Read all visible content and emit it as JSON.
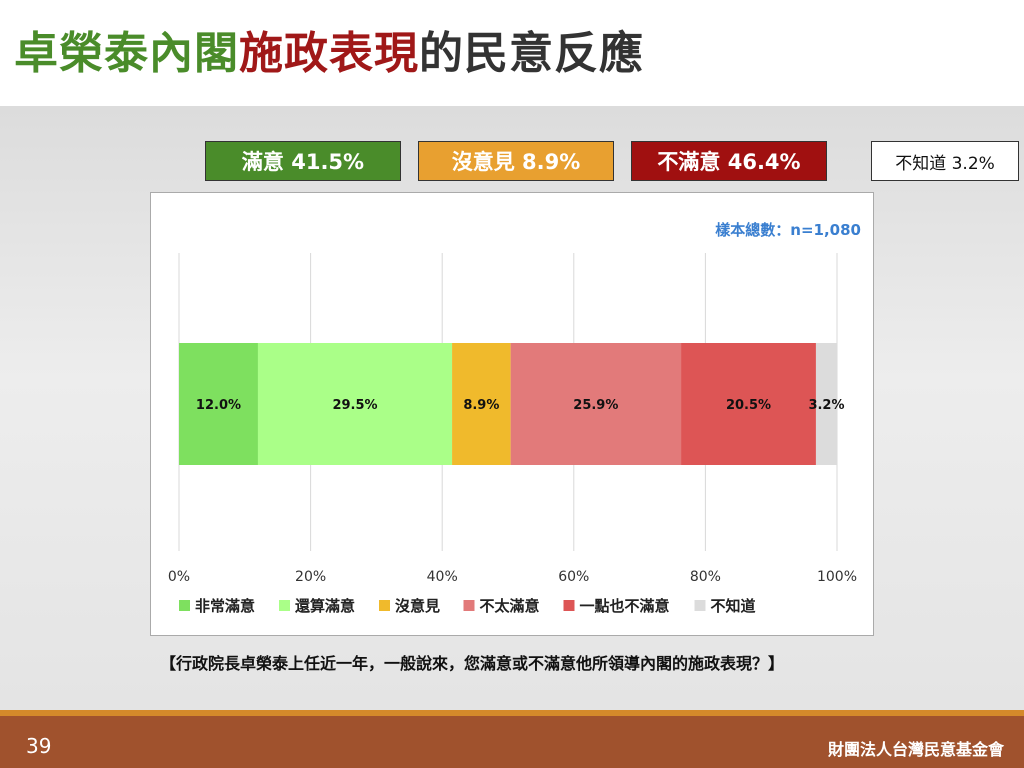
{
  "title": {
    "part1": "卓榮泰內閣",
    "part2": "施政表現",
    "part3": "的民意反應"
  },
  "summary": {
    "satisfied": "滿意 41.5%",
    "neutral": "沒意見 8.9%",
    "dissatisfied": "不滿意 46.4%",
    "unknown": "不知道 3.2%"
  },
  "colors": {
    "title_green": "#4a8c2a",
    "title_red": "#a01818",
    "box_satisfied": "#4a8c2a",
    "box_neutral": "#e8a030",
    "box_dissatisfied": "#a01010"
  },
  "sample_size": "樣本總數：n=1,080",
  "question": "【行政院長卓榮泰上任近一年，一般說來，您滿意或不滿意他所領導內閣的施政表現？】",
  "footer": {
    "page_number": "39",
    "organization": "財團法人台灣民意基金會"
  },
  "chart_data": {
    "type": "bar",
    "orientation": "horizontal",
    "stacked": true,
    "categories": [
      ""
    ],
    "series": [
      {
        "name": "非常滿意",
        "values": [
          12.0
        ],
        "label": "12.0%",
        "color": "#7ee05f"
      },
      {
        "name": "還算滿意",
        "values": [
          29.5
        ],
        "label": "29.5%",
        "color": "#aaff88"
      },
      {
        "name": "沒意見",
        "values": [
          8.9
        ],
        "label": "8.9%",
        "color": "#f0ba2c"
      },
      {
        "name": "不太滿意",
        "values": [
          25.9
        ],
        "label": "25.9%",
        "color": "#e27a7a"
      },
      {
        "name": "一點也不滿意",
        "values": [
          20.5
        ],
        "label": "20.5%",
        "color": "#dd5555"
      },
      {
        "name": "不知道",
        "values": [
          3.2
        ],
        "label": "3.2%",
        "color": "#dcdcdc"
      }
    ],
    "xlim": [
      0,
      100
    ],
    "xticks": [
      "0%",
      "20%",
      "40%",
      "60%",
      "80%",
      "100%"
    ],
    "grid": "vertical",
    "legend": "bottom"
  }
}
